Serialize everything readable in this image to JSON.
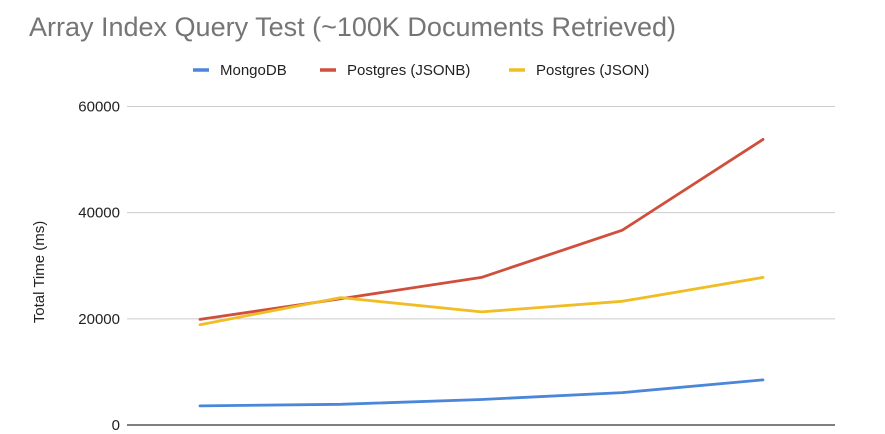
{
  "chart_data": {
    "type": "line",
    "title": "Array Index Query Test (~100K Documents Retrieved)",
    "xlabel": "",
    "ylabel": "Total Time (ms)",
    "ylim": [
      0,
      60000
    ],
    "yticks": [
      "0",
      "20000",
      "40000",
      "60000"
    ],
    "x": [
      1,
      2,
      3,
      4,
      5
    ],
    "grid": true,
    "legend_position": "top",
    "series": [
      {
        "name": "MongoDB",
        "color": "#4a86d9",
        "values": [
          3600,
          3900,
          4800,
          6100,
          8500
        ]
      },
      {
        "name": "Postgres (JSONB)",
        "color": "#cf4f3c",
        "values": [
          19900,
          23800,
          27800,
          36700,
          53800
        ]
      },
      {
        "name": "Postgres (JSON)",
        "color": "#f0bd24",
        "values": [
          18900,
          24000,
          21300,
          23300,
          27800
        ]
      }
    ]
  }
}
